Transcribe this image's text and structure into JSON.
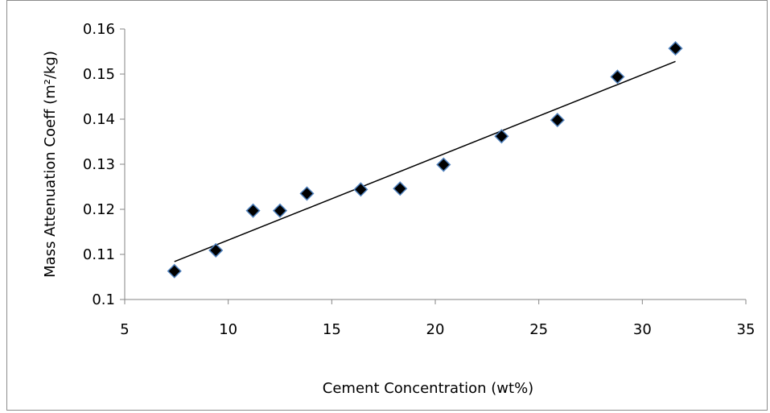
{
  "chart_data": {
    "type": "scatter",
    "title": "",
    "xlabel": "Cement Concentration (wt%)",
    "ylabel": "Mass Attenuation Coeff (m²/kg)",
    "xlim": [
      5,
      35
    ],
    "ylim": [
      0.1,
      0.16
    ],
    "xticks": [
      5,
      10,
      15,
      20,
      25,
      30,
      35
    ],
    "yticks": [
      0.1,
      0.11,
      0.12,
      0.13,
      0.14,
      0.15,
      0.16
    ],
    "xtick_labels": [
      "5",
      "10",
      "15",
      "20",
      "25",
      "30",
      "35"
    ],
    "ytick_labels": [
      "0.1",
      "0.11",
      "0.12",
      "0.13",
      "0.14",
      "0.15",
      "0.16"
    ],
    "grid": false,
    "legend": false,
    "marker": "diamond",
    "marker_color": "#000000",
    "marker_edge_color": "#4f81bd",
    "series": [
      {
        "points": [
          {
            "x": 7.4,
            "y": 0.1063
          },
          {
            "x": 9.4,
            "y": 0.1109
          },
          {
            "x": 11.2,
            "y": 0.1197
          },
          {
            "x": 12.5,
            "y": 0.1197
          },
          {
            "x": 13.8,
            "y": 0.1235
          },
          {
            "x": 16.4,
            "y": 0.1244
          },
          {
            "x": 18.3,
            "y": 0.1246
          },
          {
            "x": 20.4,
            "y": 0.1299
          },
          {
            "x": 23.2,
            "y": 0.1362
          },
          {
            "x": 25.9,
            "y": 0.1398
          },
          {
            "x": 28.8,
            "y": 0.1494
          },
          {
            "x": 31.6,
            "y": 0.1557
          }
        ]
      }
    ],
    "trendline": {
      "type": "linear",
      "from": {
        "x": 7.4,
        "y": 0.1084
      },
      "to": {
        "x": 31.6,
        "y": 0.1528
      }
    }
  }
}
